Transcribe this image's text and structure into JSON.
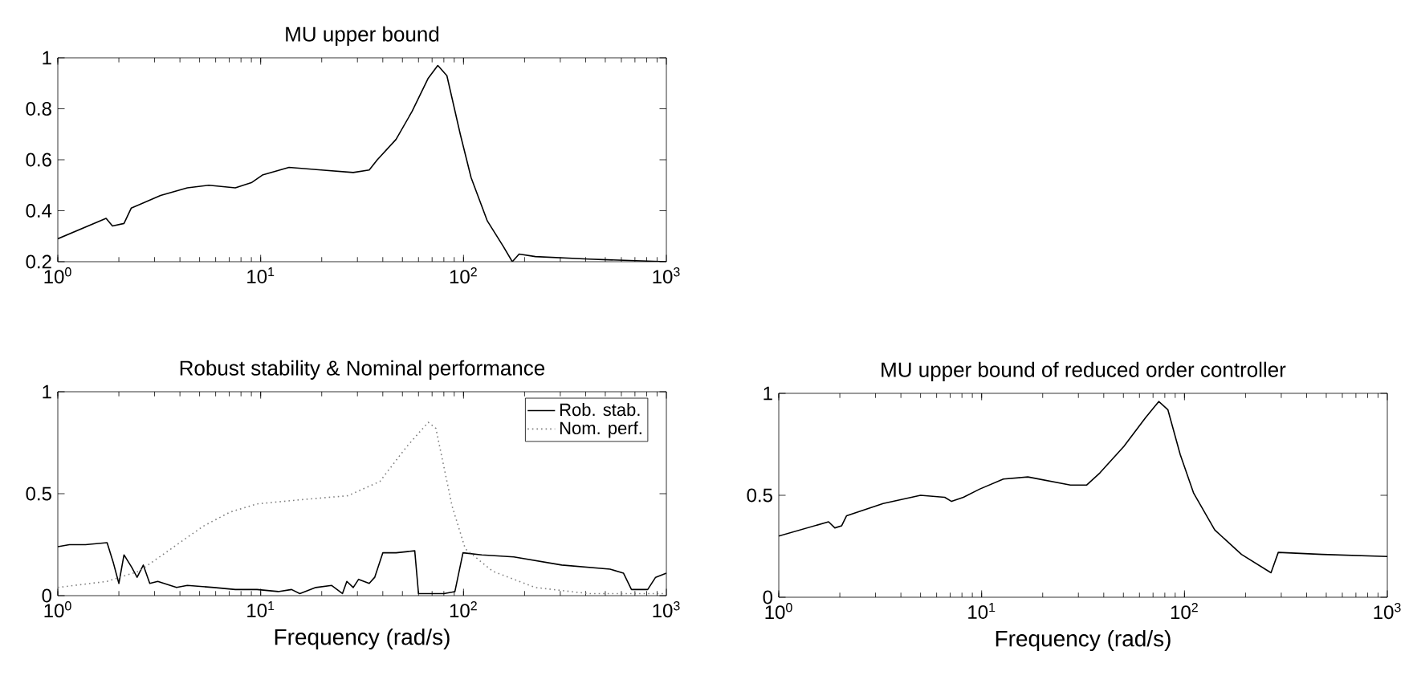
{
  "chart_data": [
    {
      "type": "line",
      "title": "MU upper bound",
      "log": "x",
      "xlim": [
        1,
        1000
      ],
      "ylim": [
        0.2,
        1
      ],
      "xticks": [
        {
          "value": 1,
          "label": "10$^{0}$"
        },
        {
          "value": 10,
          "label": "10$^{1}$"
        },
        {
          "value": 100,
          "label": "10$^{2}$"
        },
        {
          "value": 1000,
          "label": "10$^{3}$"
        }
      ],
      "yticks": [
        0.2,
        0.4,
        0.6,
        0.8,
        1
      ],
      "series": [
        {
          "color": "#000000",
          "x": [
            1,
            1.73,
            1.86,
            2.12,
            2.3,
            3.21,
            4.35,
            5.55,
            7.5,
            9.0,
            10.2,
            13.8,
            19.9,
            28.6,
            34.3,
            37.6,
            46.5,
            55.8,
            67,
            74.7,
            82.8,
            96.4,
            109,
            131,
            157,
            174,
            188,
            226,
            414,
            1000
          ],
          "values": [
            0.29,
            0.37,
            0.34,
            0.35,
            0.41,
            0.46,
            0.49,
            0.5,
            0.49,
            0.51,
            0.54,
            0.57,
            0.56,
            0.55,
            0.56,
            0.6,
            0.68,
            0.79,
            0.92,
            0.97,
            0.93,
            0.7,
            0.53,
            0.36,
            0.26,
            0.2,
            0.23,
            0.22,
            0.21,
            0.2
          ]
        }
      ]
    },
    {
      "type": "line",
      "title": "Robust stability & Nominal performance",
      "xlabel": "Frequency (rad/s)",
      "log": "x",
      "xlim": [
        1,
        1000
      ],
      "ylim": [
        0,
        1
      ],
      "xticks": [
        {
          "value": 1,
          "label": "10$^{0}$"
        },
        {
          "value": 10,
          "label": "10$^{1}$"
        },
        {
          "value": 100,
          "label": "10$^{2}$"
        },
        {
          "value": 1000,
          "label": "10$^{3}$"
        }
      ],
      "yticks": [
        0,
        0.5,
        1
      ],
      "legend": "top right",
      "series": [
        {
          "name": "Rob. stab.",
          "color": "#000000",
          "line_style": "solid",
          "x": [
            1,
            1.14,
            1.37,
            1.75,
            1.88,
            2.0,
            2.12,
            2.31,
            2.46,
            2.64,
            2.84,
            3.11,
            3.85,
            4.35,
            5.89,
            7.5,
            9.6,
            12.2,
            14.2,
            15.6,
            18.7,
            22.4,
            25.3,
            26.6,
            28.6,
            30.4,
            34.3,
            36.5,
            40,
            46.5,
            57.5,
            60,
            80,
            90.7,
            99.4,
            123,
            177,
            305,
            528,
            615,
            673,
            809,
            885,
            1000
          ],
          "values": [
            0.24,
            0.25,
            0.25,
            0.26,
            0.16,
            0.06,
            0.2,
            0.14,
            0.09,
            0.15,
            0.06,
            0.07,
            0.04,
            0.05,
            0.04,
            0.03,
            0.03,
            0.02,
            0.03,
            0.01,
            0.04,
            0.05,
            0.01,
            0.07,
            0.04,
            0.08,
            0.06,
            0.09,
            0.21,
            0.21,
            0.22,
            0.01,
            0.01,
            0.02,
            0.21,
            0.2,
            0.19,
            0.15,
            0.13,
            0.11,
            0.03,
            0.03,
            0.09,
            0.11
          ]
        },
        {
          "name": "Nom. perf.",
          "color": "#808080",
          "line_style": "dotted",
          "x": [
            1,
            1.75,
            2.52,
            3.62,
            5.2,
            7.07,
            9.6,
            15.6,
            26.9,
            38.7,
            52.4,
            67,
            73.1,
            87.8,
            102,
            139,
            226,
            414,
            1000
          ],
          "values": [
            0.04,
            0.07,
            0.12,
            0.23,
            0.34,
            0.41,
            0.45,
            0.47,
            0.49,
            0.56,
            0.73,
            0.85,
            0.82,
            0.44,
            0.23,
            0.12,
            0.04,
            0.01,
            0.01
          ]
        }
      ]
    },
    {
      "type": "line",
      "title": "MU upper bound of reduced order controller",
      "xlabel": "Frequency (rad/s)",
      "log": "x",
      "xlim": [
        1,
        1000
      ],
      "ylim": [
        0,
        1
      ],
      "xticks": [
        {
          "value": 1,
          "label": "10$^{0}$"
        },
        {
          "value": 10,
          "label": "10$^{1}$"
        },
        {
          "value": 100,
          "label": "10$^{2}$"
        },
        {
          "value": 1000,
          "label": "10$^{3}$"
        }
      ],
      "yticks": [
        0,
        0.5,
        1
      ],
      "series": [
        {
          "color": "#000000",
          "x": [
            1,
            1.76,
            1.89,
            2.04,
            2.16,
            3.27,
            5.0,
            6.58,
            7.11,
            8.13,
            9.76,
            12.8,
            16.9,
            27.4,
            32.9,
            38.3,
            50.3,
            64.2,
            74.7,
            82.8,
            95.3,
            111,
            141,
            191,
            267,
            290,
            477,
            1000
          ],
          "values": [
            0.3,
            0.37,
            0.34,
            0.35,
            0.4,
            0.46,
            0.5,
            0.49,
            0.47,
            0.49,
            0.53,
            0.58,
            0.59,
            0.55,
            0.55,
            0.61,
            0.74,
            0.88,
            0.96,
            0.92,
            0.7,
            0.51,
            0.33,
            0.21,
            0.12,
            0.22,
            0.21,
            0.2
          ]
        }
      ]
    }
  ]
}
